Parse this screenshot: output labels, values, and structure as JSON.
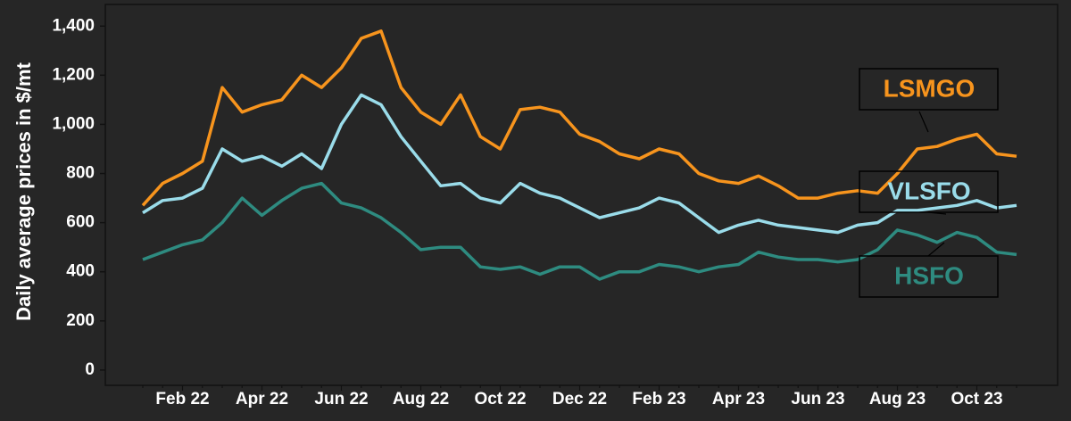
{
  "chart_data": {
    "type": "line",
    "y_label": "Daily average prices in $/mt",
    "categories": [
      null,
      null,
      "Feb 22",
      null,
      null,
      null,
      "Apr 22",
      null,
      null,
      null,
      "Jun 22",
      null,
      null,
      null,
      "Aug 22",
      null,
      null,
      null,
      "Oct 22",
      null,
      null,
      null,
      "Dec 22",
      null,
      null,
      null,
      "Feb 23",
      null,
      null,
      null,
      "Apr 23",
      null,
      null,
      null,
      "Jun 23",
      null,
      null,
      null,
      "Aug 23",
      null,
      null,
      null,
      "Oct 23",
      null,
      null
    ],
    "series": [
      {
        "name": "LSMGO",
        "color": "#f7941d",
        "values": [
          670,
          760,
          800,
          850,
          1150,
          1050,
          1080,
          1100,
          1200,
          1150,
          1230,
          1350,
          1380,
          1150,
          1050,
          1000,
          1120,
          950,
          900,
          1060,
          1070,
          1050,
          960,
          930,
          880,
          860,
          900,
          880,
          800,
          770,
          760,
          790,
          750,
          700,
          700,
          720,
          730,
          720,
          800,
          900,
          910,
          940,
          960,
          880,
          870
        ]
      },
      {
        "name": "VLSFO",
        "color": "#9adcea",
        "values": [
          640,
          690,
          700,
          740,
          900,
          850,
          870,
          830,
          880,
          820,
          1000,
          1120,
          1080,
          950,
          850,
          750,
          760,
          700,
          680,
          760,
          720,
          700,
          660,
          620,
          640,
          660,
          700,
          680,
          620,
          560,
          590,
          610,
          590,
          580,
          570,
          560,
          590,
          600,
          650,
          650,
          660,
          670,
          690,
          660,
          670
        ]
      },
      {
        "name": "HSFO",
        "color": "#2e8b80",
        "values": [
          450,
          480,
          510,
          530,
          600,
          700,
          630,
          690,
          740,
          760,
          680,
          660,
          620,
          560,
          490,
          500,
          500,
          420,
          410,
          420,
          390,
          420,
          420,
          370,
          400,
          400,
          430,
          420,
          400,
          420,
          430,
          480,
          460,
          450,
          450,
          440,
          450,
          490,
          570,
          550,
          520,
          560,
          540,
          480,
          470
        ]
      }
    ],
    "ylim": [
      -62,
      1488
    ],
    "yticks": [
      0,
      200,
      400,
      600,
      800,
      {
        "value": 1000,
        "label": "1,000"
      },
      {
        "value": 1200,
        "label": "1,200"
      },
      {
        "value": 1400,
        "label": "1,400"
      }
    ]
  }
}
